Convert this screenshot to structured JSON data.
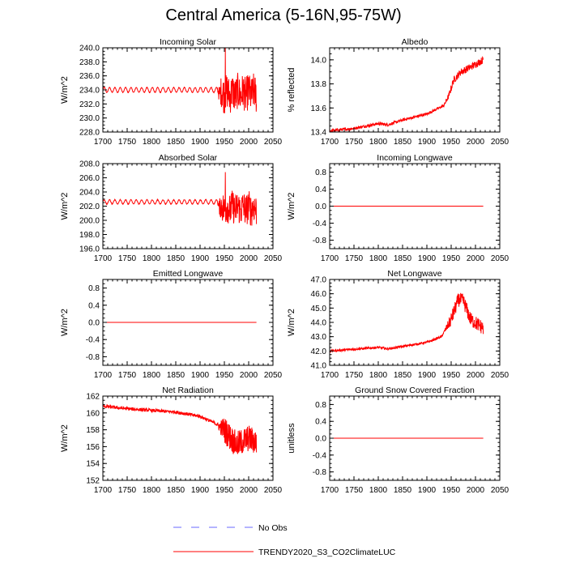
{
  "figure_title": "Central America (5-16N,95-75W)",
  "colors": {
    "model": "#ff0000",
    "obs": "#6a6aff",
    "axis": "#000000"
  },
  "legend": [
    {
      "label": "No Obs",
      "style": "dashed",
      "color": "#6a6aff"
    },
    {
      "label": "TRENDY2020_S3_CO2ClimateLUC",
      "style": "solid",
      "color": "#ff0000"
    }
  ],
  "chart_data": [
    {
      "type": "line",
      "title": "Incoming Solar",
      "ylabel": "W/m^2",
      "xlim": [
        1700,
        2050
      ],
      "ylim": [
        228,
        240
      ],
      "xticks": [
        "1700",
        "1750",
        "1800",
        "1850",
        "1900",
        "1950",
        "2000",
        "2050"
      ],
      "yticks": [
        "228.0",
        "230.0",
        "232.0",
        "234.0",
        "236.0",
        "238.0",
        "240.0"
      ],
      "x_range": [
        1700,
        2016
      ],
      "series": [
        {
          "name": "TRENDY2020_S3_CO2ClimateLUC",
          "style": "solar",
          "base": 234.0,
          "amp": 0.35,
          "late_amp": 2.6,
          "late_offset": -0.5,
          "peak": 240.0
        }
      ]
    },
    {
      "type": "line",
      "title": "Albedo",
      "ylabel": "% reflected",
      "xlim": [
        1700,
        2050
      ],
      "ylim": [
        13.4,
        14.1
      ],
      "xticks": [
        "1700",
        "1750",
        "1800",
        "1850",
        "1900",
        "1950",
        "2000",
        "2050"
      ],
      "yticks": [
        "13.4",
        "13.6",
        "13.8",
        "14.0"
      ],
      "x_range": [
        1700,
        2016
      ],
      "series": [
        {
          "name": "TRENDY2020_S3_CO2ClimateLUC",
          "style": "trend",
          "anchors": [
            [
              1700,
              13.41
            ],
            [
              1750,
              13.43
            ],
            [
              1800,
              13.47
            ],
            [
              1820,
              13.46
            ],
            [
              1850,
              13.5
            ],
            [
              1900,
              13.55
            ],
            [
              1935,
              13.62
            ],
            [
              1945,
              13.7
            ],
            [
              1955,
              13.83
            ],
            [
              1970,
              13.9
            ],
            [
              1990,
              13.94
            ],
            [
              2016,
              14.0
            ]
          ],
          "noise": 0.012,
          "late_noise": 0.03
        }
      ]
    },
    {
      "type": "line",
      "title": "Absorbed Solar",
      "ylabel": "W/m^2",
      "xlim": [
        1700,
        2050
      ],
      "ylim": [
        196,
        208
      ],
      "xticks": [
        "1700",
        "1750",
        "1800",
        "1850",
        "1900",
        "1950",
        "2000",
        "2050"
      ],
      "yticks": [
        "196.0",
        "198.0",
        "200.0",
        "202.0",
        "204.0",
        "206.0",
        "208.0"
      ],
      "x_range": [
        1700,
        2016
      ],
      "series": [
        {
          "name": "TRENDY2020_S3_CO2ClimateLUC",
          "style": "solar",
          "base": 202.6,
          "amp": 0.3,
          "late_amp": 2.3,
          "late_offset": -0.9,
          "peak": 206.8
        }
      ]
    },
    {
      "type": "line",
      "title": "Incoming Longwave",
      "ylabel": "W/m^2",
      "xlim": [
        1700,
        2050
      ],
      "ylim": [
        -1,
        1
      ],
      "xticks": [
        "1700",
        "1750",
        "1800",
        "1850",
        "1900",
        "1950",
        "2000",
        "2050"
      ],
      "yticks": [
        "-0.8",
        "-0.4",
        "0.0",
        "0.4",
        "0.8"
      ],
      "x_range": [
        1700,
        2016
      ],
      "series": [
        {
          "name": "TRENDY2020_S3_CO2ClimateLUC",
          "style": "flat",
          "value": 0.0
        }
      ]
    },
    {
      "type": "line",
      "title": "Emitted Longwave",
      "ylabel": "W/m^2",
      "xlim": [
        1700,
        2050
      ],
      "ylim": [
        -1,
        1
      ],
      "xticks": [
        "1700",
        "1750",
        "1800",
        "1850",
        "1900",
        "1950",
        "2000",
        "2050"
      ],
      "yticks": [
        "-0.8",
        "-0.4",
        "0.0",
        "0.4",
        "0.8"
      ],
      "x_range": [
        1700,
        2016
      ],
      "series": [
        {
          "name": "TRENDY2020_S3_CO2ClimateLUC",
          "style": "flat",
          "value": 0.0
        }
      ]
    },
    {
      "type": "line",
      "title": "Net Longwave",
      "ylabel": "W/m^2",
      "xlim": [
        1700,
        2050
      ],
      "ylim": [
        41,
        47
      ],
      "xticks": [
        "1700",
        "1750",
        "1800",
        "1850",
        "1900",
        "1950",
        "2000",
        "2050"
      ],
      "yticks": [
        "41.0",
        "42.0",
        "43.0",
        "44.0",
        "45.0",
        "46.0",
        "47.0"
      ],
      "x_range": [
        1700,
        2016
      ],
      "series": [
        {
          "name": "TRENDY2020_S3_CO2ClimateLUC",
          "style": "trend",
          "anchors": [
            [
              1700,
              42.0
            ],
            [
              1800,
              42.25
            ],
            [
              1820,
              42.15
            ],
            [
              1900,
              42.6
            ],
            [
              1930,
              43.0
            ],
            [
              1950,
              44.2
            ],
            [
              1965,
              45.6
            ],
            [
              1975,
              45.5
            ],
            [
              1990,
              44.2
            ],
            [
              2016,
              43.6
            ]
          ],
          "noise": 0.08,
          "late_noise": 0.5
        }
      ]
    },
    {
      "type": "line",
      "title": "Net Radiation",
      "ylabel": "W/m^2",
      "xlim": [
        1700,
        2050
      ],
      "ylim": [
        152,
        162
      ],
      "xticks": [
        "1700",
        "1750",
        "1800",
        "1850",
        "1900",
        "1950",
        "2000",
        "2050"
      ],
      "yticks": [
        "152",
        "154",
        "156",
        "158",
        "160",
        "162"
      ],
      "x_range": [
        1700,
        2016
      ],
      "series": [
        {
          "name": "TRENDY2020_S3_CO2ClimateLUC",
          "style": "trend",
          "anchors": [
            [
              1700,
              160.8
            ],
            [
              1750,
              160.5
            ],
            [
              1800,
              160.3
            ],
            [
              1850,
              160.1
            ],
            [
              1900,
              159.6
            ],
            [
              1930,
              158.8
            ],
            [
              1950,
              158.0
            ],
            [
              1975,
              156.2
            ],
            [
              2000,
              157.0
            ],
            [
              2016,
              156.5
            ]
          ],
          "noise": 0.2,
          "late_noise": 1.6
        }
      ]
    },
    {
      "type": "line",
      "title": "Ground Snow Covered Fraction",
      "ylabel": "unitless",
      "xlim": [
        1700,
        2050
      ],
      "ylim": [
        -1,
        1
      ],
      "xticks": [
        "1700",
        "1750",
        "1800",
        "1850",
        "1900",
        "1950",
        "2000",
        "2050"
      ],
      "yticks": [
        "-0.8",
        "-0.4",
        "0.0",
        "0.4",
        "0.8"
      ],
      "x_range": [
        1700,
        2016
      ],
      "series": [
        {
          "name": "TRENDY2020_S3_CO2ClimateLUC",
          "style": "flat",
          "value": 0.0
        }
      ]
    }
  ]
}
